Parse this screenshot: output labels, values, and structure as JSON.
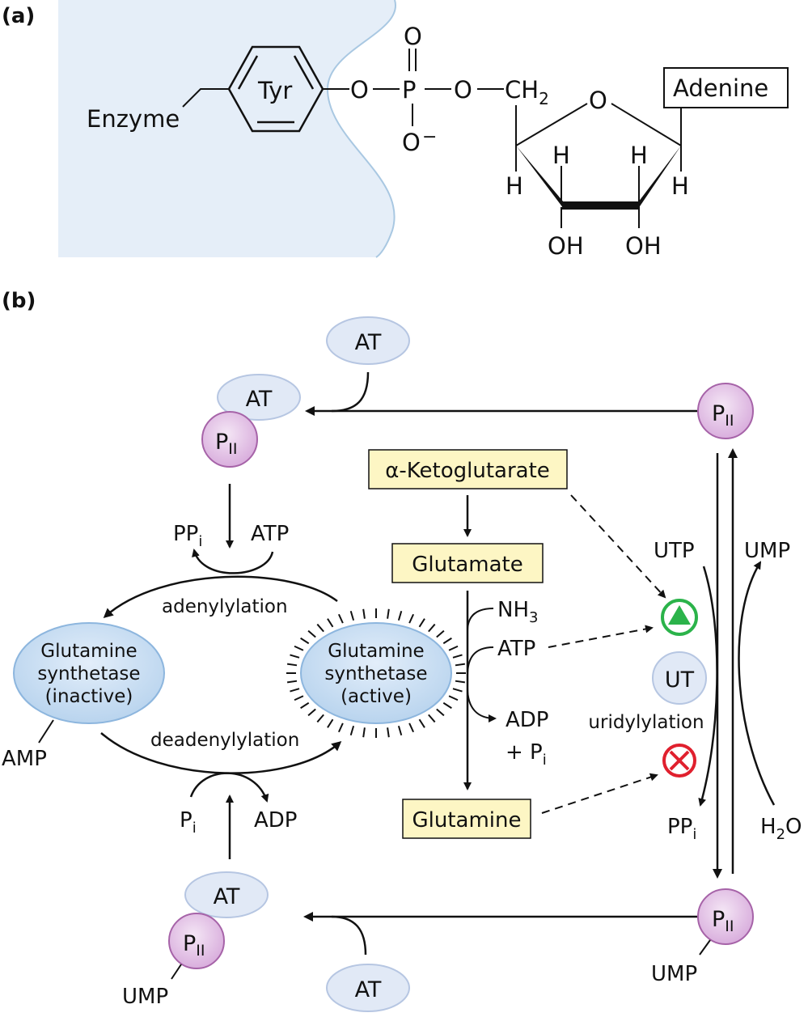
{
  "panel_a": {
    "label": "(a)",
    "enzyme": "Enzyme",
    "tyr": "Tyr",
    "o1": "O",
    "p": "P",
    "o_top": "O",
    "o_minus": "O",
    "minus": "−",
    "o2": "O",
    "ch": "CH",
    "ch_sub": "2",
    "ring_o": "O",
    "adenine": "Adenine",
    "h_left": "H",
    "h_mid_left": "H",
    "h_mid_right": "H",
    "h_right": "H",
    "oh_left": "OH",
    "oh_right": "OH"
  },
  "panel_b": {
    "label": "(b)",
    "at_top": "AT",
    "at_complex_top": "AT",
    "pii_complex_top": "P",
    "pii_sub": "II",
    "pii_right_top": "P",
    "ppi_left": "PP",
    "ppi_left_sub": "i",
    "atp_left": "ATP",
    "adenylylation": "adenylylation",
    "gs_inactive": [
      "Glutamine",
      "synthetase",
      "(inactive)"
    ],
    "gs_active": [
      "Glutamine",
      "synthetase",
      "(active)"
    ],
    "amp": "AMP",
    "deadenylylation": "deadenylylation",
    "pi_left": "P",
    "pi_left_sub": "i",
    "adp_left": "ADP",
    "at_complex_bottom": "AT",
    "pii_complex_bottom": "P",
    "ump_bottom_left": "UMP",
    "at_bottom": "AT",
    "alpha_kg": "α-Ketoglutarate",
    "glutamate": "Glutamate",
    "glutamine": "Glutamine",
    "nh": "NH",
    "nh_sub": "3",
    "atp_mid": "ATP",
    "adp_mid": "ADP",
    "plus_pi": "+ P",
    "plus_pi_sub": "i",
    "utp": "UTP",
    "ump_right": "UMP",
    "ut": "UT",
    "uridylylation": "uridylylation",
    "ppi_right": "PP",
    "ppi_right_sub": "i",
    "h2o": "H",
    "h2o_sub": "2",
    "h2o_o": "O",
    "pii_right_bottom": "P",
    "ump_bottom_right": "UMP"
  },
  "colors": {
    "enzyme_region": "#e5eef8",
    "enzyme_edge": "#a9c8e2",
    "at_fill": "#e1e9f6",
    "at_edge": "#b6c6e2",
    "pii_fill": "#e6c8e8",
    "pii_edge": "#a663a8",
    "gs_fill": "#c5dcf1",
    "gs_edge": "#8db6de",
    "metabolite_fill": "#fdf6c4",
    "activator": "#2bb34a",
    "inhibitor": "#e0202e"
  }
}
